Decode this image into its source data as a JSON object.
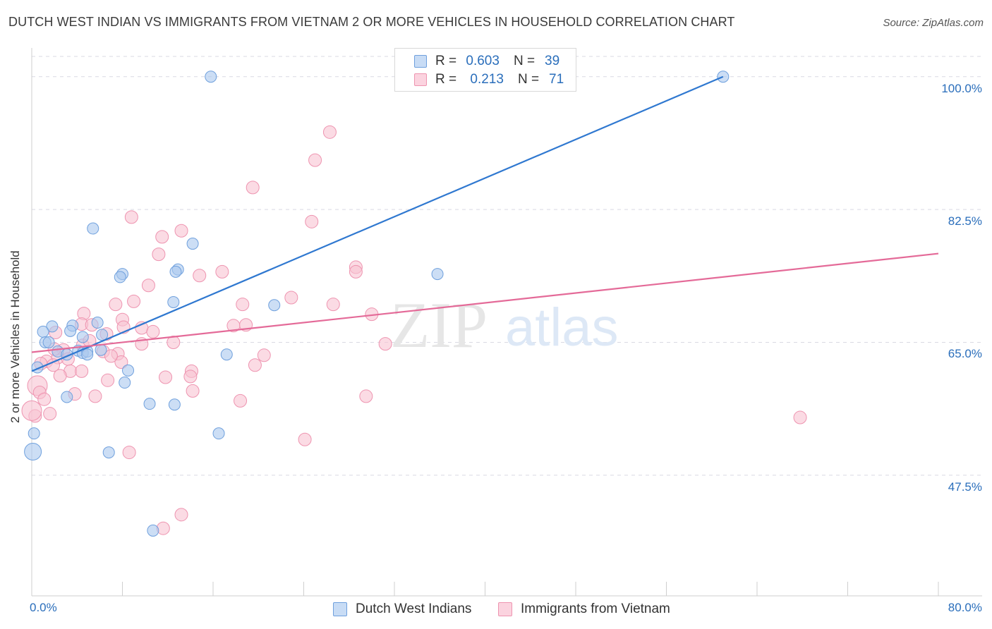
{
  "header": {
    "title": "DUTCH WEST INDIAN VS IMMIGRANTS FROM VIETNAM 2 OR MORE VEHICLES IN HOUSEHOLD CORRELATION CHART",
    "source": "Source: ZipAtlas.com"
  },
  "watermark": {
    "zip": "ZIP",
    "atlas": "atlas"
  },
  "legend": {
    "rows": [
      {
        "r_label": "R =",
        "r_value": "0.603",
        "n_label": "N =",
        "n_value": "39",
        "color": "#aac8ee"
      },
      {
        "r_label": "R =",
        "r_value": "0.213",
        "n_label": "N =",
        "n_value": "71",
        "color": "#f6b8cc"
      }
    ]
  },
  "colors": {
    "blue_fill": "#aac8ee",
    "blue_stroke": "#6fa0dd",
    "blue_line": "#2f78d0",
    "pink_fill": "#f8c3d2",
    "pink_stroke": "#ee94b0",
    "pink_line": "#e46a98",
    "tick_text": "#2a6ebb",
    "grid": "#d9d9e3"
  },
  "chart_data": {
    "type": "scatter",
    "title": "DUTCH WEST INDIAN VS IMMIGRANTS FROM VIETNAM 2 OR MORE VEHICLES IN HOUSEHOLD CORRELATION CHART",
    "xlabel": "",
    "ylabel": "2 or more Vehicles in Household",
    "xlim": [
      0,
      80
    ],
    "ylim": [
      31.6,
      103.6
    ],
    "x_tick_labels": [
      "0.0%",
      "80.0%"
    ],
    "y_ticks": [
      47.5,
      65.0,
      82.5,
      100.0
    ],
    "y_tick_labels": [
      "47.5%",
      "65.0%",
      "82.5%",
      "100.0%"
    ],
    "grid": "horizontal dashed",
    "legend_position": "bottom-center",
    "series": [
      {
        "name": "Dutch West Indians",
        "color": "#aac8ee",
        "points": [
          [
            15.8,
            100.0
          ],
          [
            61.0,
            100.0
          ],
          [
            5.4,
            80.0
          ],
          [
            14.2,
            78.0
          ],
          [
            12.9,
            74.6
          ],
          [
            8.0,
            74.0
          ],
          [
            7.8,
            73.6
          ],
          [
            12.7,
            74.3
          ],
          [
            35.8,
            74.0
          ],
          [
            12.5,
            70.3
          ],
          [
            21.4,
            69.9
          ],
          [
            5.8,
            67.6
          ],
          [
            1.8,
            67.1
          ],
          [
            3.6,
            67.2
          ],
          [
            1.0,
            66.4
          ],
          [
            3.4,
            66.5
          ],
          [
            6.2,
            66.0
          ],
          [
            4.5,
            65.7
          ],
          [
            1.2,
            65.0
          ],
          [
            1.5,
            65.0
          ],
          [
            2.3,
            63.8
          ],
          [
            4.1,
            63.9
          ],
          [
            4.5,
            63.6
          ],
          [
            4.9,
            63.8
          ],
          [
            6.1,
            64.0
          ],
          [
            3.1,
            63.4
          ],
          [
            4.9,
            63.4
          ],
          [
            17.2,
            63.4
          ],
          [
            0.5,
            61.7
          ],
          [
            8.5,
            61.3
          ],
          [
            8.2,
            59.7
          ],
          [
            3.1,
            57.8
          ],
          [
            10.4,
            56.9
          ],
          [
            12.6,
            56.8
          ],
          [
            16.5,
            53.0
          ],
          [
            0.1,
            50.6
          ],
          [
            6.8,
            50.5
          ],
          [
            10.7,
            40.2
          ],
          [
            0.2,
            53.0
          ]
        ]
      },
      {
        "name": "Immigrants from Vietnam",
        "color": "#f8c3d2",
        "points": [
          [
            26.3,
            92.7
          ],
          [
            25.0,
            89.0
          ],
          [
            19.5,
            85.4
          ],
          [
            8.8,
            81.5
          ],
          [
            24.7,
            80.9
          ],
          [
            13.2,
            79.7
          ],
          [
            11.5,
            78.9
          ],
          [
            11.2,
            76.6
          ],
          [
            28.6,
            74.9
          ],
          [
            28.6,
            74.3
          ],
          [
            16.8,
            74.3
          ],
          [
            14.8,
            73.8
          ],
          [
            10.3,
            72.5
          ],
          [
            22.9,
            70.9
          ],
          [
            9.0,
            70.4
          ],
          [
            7.4,
            70.0
          ],
          [
            18.6,
            70.0
          ],
          [
            26.6,
            70.0
          ],
          [
            4.6,
            68.8
          ],
          [
            30.0,
            68.7
          ],
          [
            8.0,
            68.0
          ],
          [
            4.4,
            67.4
          ],
          [
            5.3,
            67.3
          ],
          [
            17.8,
            67.2
          ],
          [
            18.9,
            67.3
          ],
          [
            8.1,
            67.0
          ],
          [
            9.7,
            66.9
          ],
          [
            10.7,
            66.4
          ],
          [
            2.1,
            66.3
          ],
          [
            6.6,
            66.1
          ],
          [
            12.5,
            65.0
          ],
          [
            9.7,
            64.8
          ],
          [
            31.2,
            64.8
          ],
          [
            4.5,
            64.6
          ],
          [
            2.8,
            64.0
          ],
          [
            6.3,
            63.8
          ],
          [
            7.6,
            63.5
          ],
          [
            20.5,
            63.3
          ],
          [
            2.3,
            63.0
          ],
          [
            3.2,
            62.8
          ],
          [
            1.3,
            62.5
          ],
          [
            7.9,
            62.4
          ],
          [
            1.9,
            62.0
          ],
          [
            0.8,
            62.2
          ],
          [
            19.7,
            62.0
          ],
          [
            3.4,
            61.2
          ],
          [
            4.4,
            61.2
          ],
          [
            14.1,
            61.2
          ],
          [
            14.0,
            60.5
          ],
          [
            2.5,
            60.6
          ],
          [
            11.8,
            60.4
          ],
          [
            6.7,
            60.0
          ],
          [
            0.5,
            59.3
          ],
          [
            0.7,
            58.4
          ],
          [
            14.2,
            58.6
          ],
          [
            3.8,
            58.2
          ],
          [
            5.6,
            57.9
          ],
          [
            29.5,
            57.9
          ],
          [
            1.1,
            57.5
          ],
          [
            18.4,
            57.3
          ],
          [
            0.3,
            55.3
          ],
          [
            1.6,
            55.6
          ],
          [
            67.8,
            55.1
          ],
          [
            24.1,
            52.2
          ],
          [
            8.6,
            50.5
          ],
          [
            13.2,
            42.3
          ],
          [
            11.6,
            40.5
          ],
          [
            5.1,
            65.2
          ],
          [
            2.0,
            64.1
          ],
          [
            0.0,
            56.0
          ],
          [
            7.0,
            63.2
          ]
        ]
      }
    ],
    "trendlines": [
      {
        "series": "Dutch West Indians",
        "x": [
          0,
          61.0
        ],
        "y": [
          61.2,
          100.0
        ]
      },
      {
        "series": "Immigrants from Vietnam",
        "x": [
          0,
          80.0
        ],
        "y": [
          63.7,
          76.7
        ]
      }
    ]
  },
  "bottom_legend": [
    {
      "label": "Dutch West Indians",
      "color": "#aac8ee"
    },
    {
      "label": "Immigrants from Vietnam",
      "color": "#f8c3d2"
    }
  ]
}
